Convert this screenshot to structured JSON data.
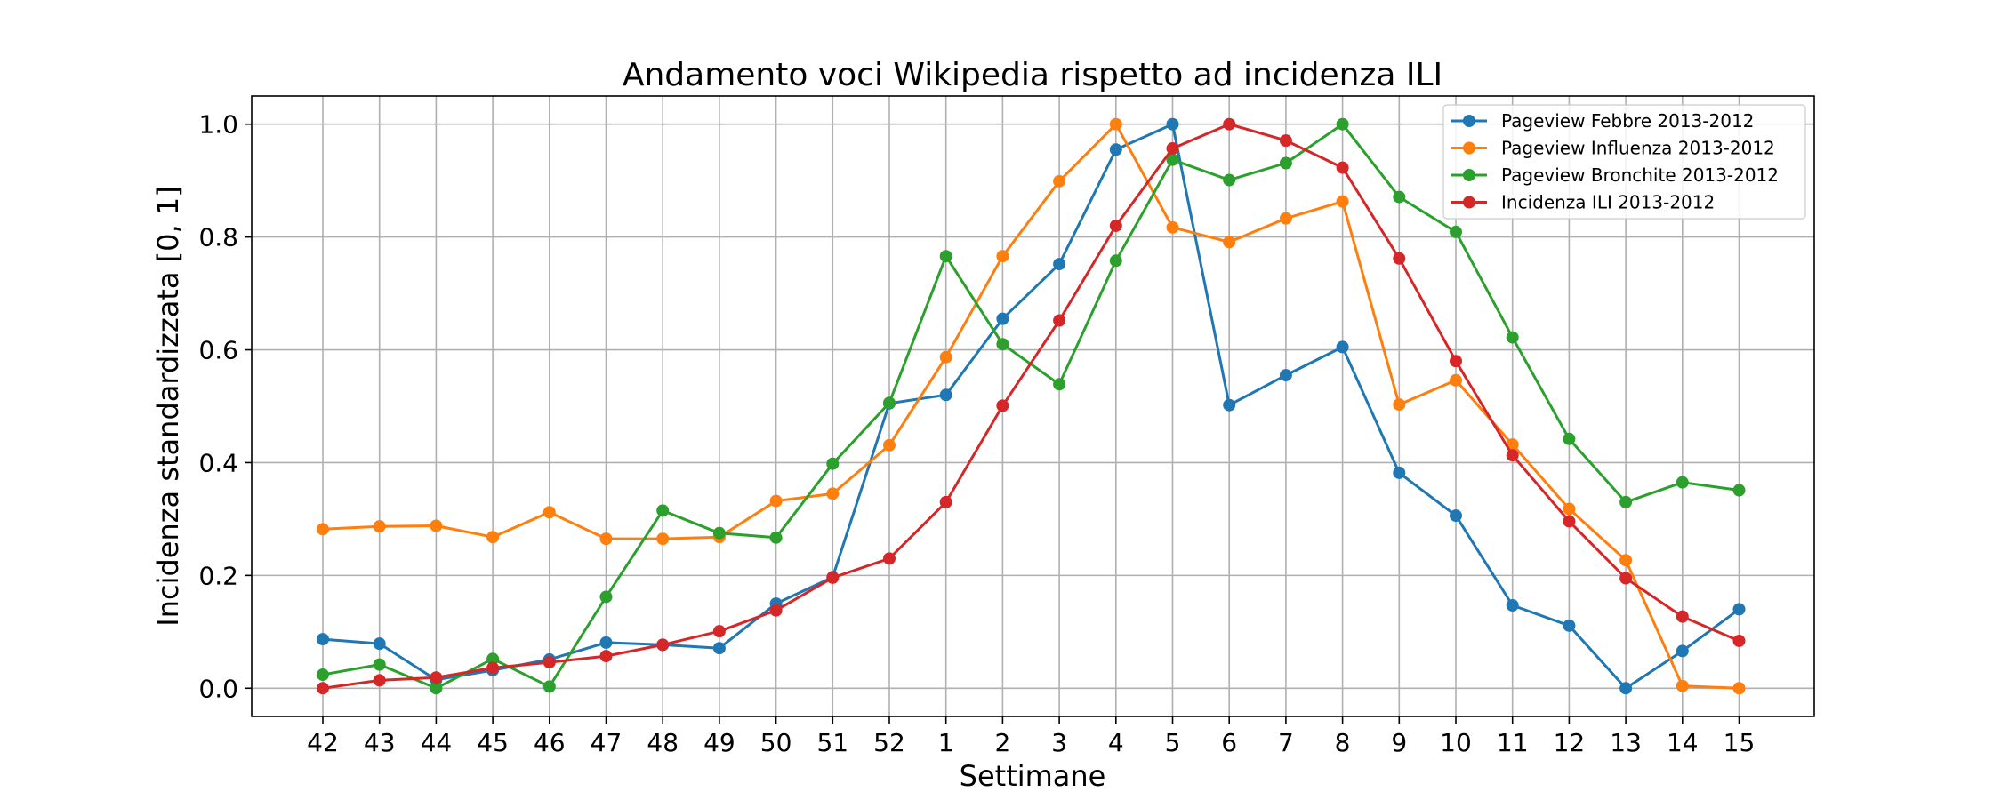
{
  "chart_data": {
    "type": "line",
    "title": "Andamento voci Wikipedia rispetto ad incidenza ILI",
    "xlabel": "Settimane",
    "ylabel": "Incidenza standardizzata [0, 1]",
    "categories": [
      "42",
      "43",
      "44",
      "45",
      "46",
      "47",
      "48",
      "49",
      "50",
      "51",
      "52",
      "1",
      "2",
      "3",
      "4",
      "5",
      "6",
      "7",
      "8",
      "9",
      "10",
      "11",
      "12",
      "13",
      "14",
      "15"
    ],
    "y_ticks": [
      "0.0",
      "0.2",
      "0.4",
      "0.6",
      "0.8",
      "1.0"
    ],
    "ylim": [
      -0.05,
      1.05
    ],
    "grid": true,
    "legend_position": "top-right",
    "series": [
      {
        "name": "Pageview Febbre 2013-2012",
        "color": "#1f77b4",
        "values": [
          0.087,
          0.079,
          0.015,
          0.032,
          0.051,
          0.081,
          0.077,
          0.071,
          0.15,
          0.197,
          0.505,
          0.52,
          0.655,
          0.752,
          0.955,
          1.0,
          0.502,
          0.555,
          0.605,
          0.382,
          0.306,
          0.147,
          0.111,
          0.0,
          0.066,
          0.14
        ]
      },
      {
        "name": "Pageview Influenza 2013-2012",
        "color": "#ff7f0e",
        "values": [
          0.282,
          0.287,
          0.288,
          0.268,
          0.312,
          0.265,
          0.265,
          0.268,
          0.332,
          0.345,
          0.431,
          0.587,
          0.766,
          0.899,
          1.0,
          0.817,
          0.791,
          0.833,
          0.863,
          0.503,
          0.546,
          0.432,
          0.318,
          0.227,
          0.004,
          0.0
        ]
      },
      {
        "name": "Pageview Bronchite 2013-2012",
        "color": "#2ca02c",
        "values": [
          0.024,
          0.042,
          0.0,
          0.052,
          0.003,
          0.162,
          0.315,
          0.275,
          0.267,
          0.398,
          0.506,
          0.766,
          0.61,
          0.539,
          0.758,
          0.937,
          0.901,
          0.931,
          1.0,
          0.871,
          0.809,
          0.622,
          0.442,
          0.33,
          0.365,
          0.351
        ]
      },
      {
        "name": "Incidenza ILI 2013-2012",
        "color": "#d62728",
        "values": [
          0.0,
          0.014,
          0.019,
          0.036,
          0.046,
          0.057,
          0.077,
          0.101,
          0.138,
          0.196,
          0.23,
          0.33,
          0.501,
          0.652,
          0.82,
          0.957,
          1.0,
          0.971,
          0.923,
          0.762,
          0.58,
          0.413,
          0.296,
          0.195,
          0.127,
          0.084
        ]
      }
    ]
  }
}
